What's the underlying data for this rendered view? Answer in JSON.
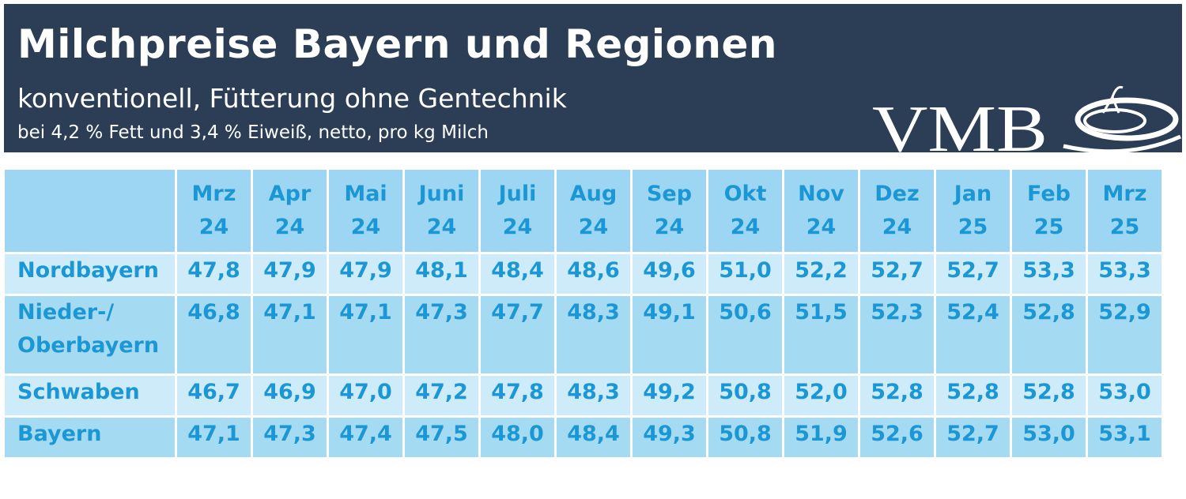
{
  "header": {
    "title": "Milchpreise Bayern und Regionen",
    "subtitle": "konventionell, Fütterung ohne Gentechnik",
    "note": "bei 4,2 % Fett und 3,4 % Eiweiß, netto, pro kg Milch",
    "logo": "VMB"
  },
  "table": {
    "columns": [
      [
        "Mrz",
        "24"
      ],
      [
        "Apr",
        "24"
      ],
      [
        "Mai",
        "24"
      ],
      [
        "Juni",
        "24"
      ],
      [
        "Juli",
        "24"
      ],
      [
        "Aug",
        "24"
      ],
      [
        "Sep",
        "24"
      ],
      [
        "Okt",
        "24"
      ],
      [
        "Nov",
        "24"
      ],
      [
        "Dez",
        "24"
      ],
      [
        "Jan",
        "25"
      ],
      [
        "Feb",
        "25"
      ],
      [
        "Mrz",
        "25"
      ]
    ],
    "rows": [
      {
        "label": [
          "Nordbayern"
        ],
        "values": [
          "47,8",
          "47,9",
          "47,9",
          "48,1",
          "48,4",
          "48,6",
          "49,6",
          "51,0",
          "52,2",
          "52,7",
          "52,7",
          "53,3",
          "53,3"
        ]
      },
      {
        "label": [
          "Nieder-/",
          "Oberbayern"
        ],
        "values": [
          "46,8",
          "47,1",
          "47,1",
          "47,3",
          "47,7",
          "48,3",
          "49,1",
          "50,6",
          "51,5",
          "52,3",
          "52,4",
          "52,8",
          "52,9"
        ]
      },
      {
        "label": [
          "Schwaben"
        ],
        "values": [
          "46,7",
          "46,9",
          "47,0",
          "47,2",
          "47,8",
          "48,3",
          "49,2",
          "50,8",
          "52,0",
          "52,8",
          "52,8",
          "52,8",
          "53,0"
        ]
      },
      {
        "label": [
          "Bayern"
        ],
        "values": [
          "47,1",
          "47,3",
          "47,4",
          "47,5",
          "48,0",
          "48,4",
          "49,3",
          "50,8",
          "51,9",
          "52,6",
          "52,7",
          "53,0",
          "53,1"
        ]
      }
    ]
  }
}
